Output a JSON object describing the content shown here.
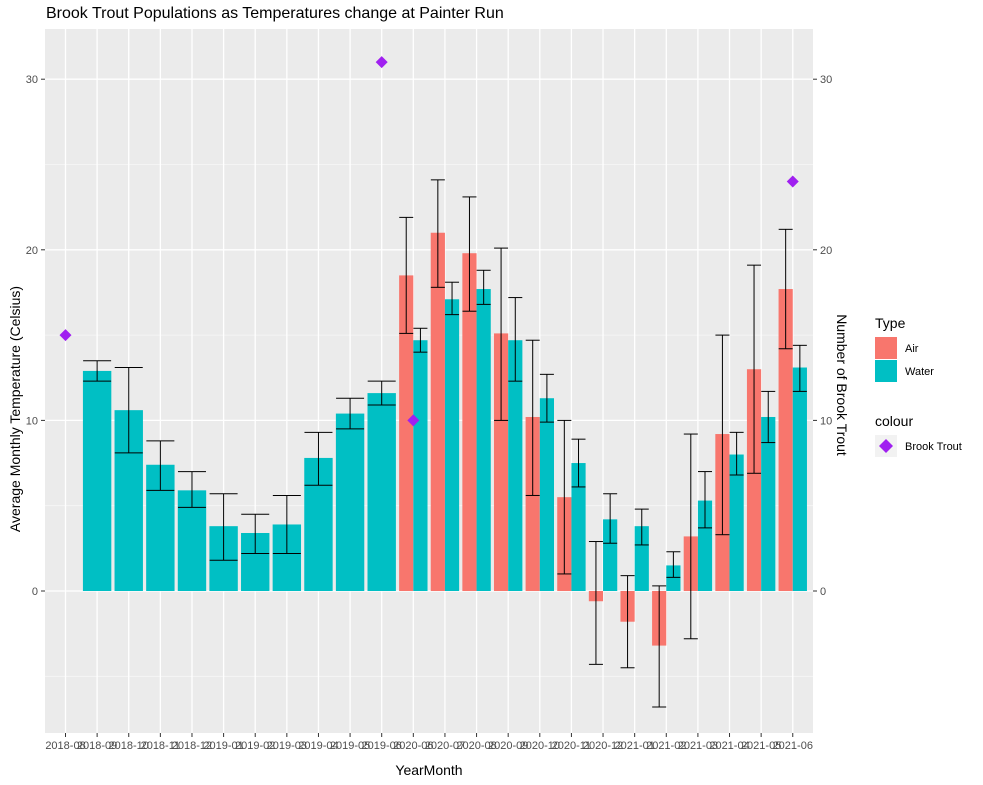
{
  "title": "Brook Trout Populations as Temperatures change at Painter Run",
  "chart_data": {
    "type": "bar",
    "title": "Brook Trout Populations as Temperatures change at Painter Run",
    "xlabel": "YearMonth",
    "ylabel": "Average Monthly Temperature (Celsius)",
    "y2label": "Number of Brook Trout",
    "ylim": [
      -8.4,
      33.1
    ],
    "y_ticks": [
      0,
      10,
      20,
      30
    ],
    "y2_ticks": [
      0,
      10,
      20,
      30
    ],
    "grid": true,
    "legend_position": "right",
    "categories": [
      "2018-08",
      "2018-09",
      "2018-10",
      "2018-11",
      "2018-12",
      "2019-01",
      "2019-02",
      "2019-03",
      "2019-04",
      "2019-05",
      "2019-06",
      "2020-06",
      "2020-07",
      "2020-08",
      "2020-09",
      "2020-10",
      "2020-11",
      "2020-12",
      "2021-01",
      "2021-02",
      "2021-03",
      "2021-04",
      "2021-05",
      "2021-06"
    ],
    "series": [
      {
        "name": "Air",
        "color": "#F8766D",
        "values": [
          null,
          null,
          null,
          null,
          null,
          null,
          null,
          null,
          null,
          null,
          null,
          18.5,
          21.0,
          19.8,
          15.1,
          10.2,
          5.5,
          -0.6,
          -1.8,
          -3.2,
          3.2,
          9.2,
          13.0,
          17.7
        ],
        "err_low": [
          null,
          null,
          null,
          null,
          null,
          null,
          null,
          null,
          null,
          null,
          null,
          15.1,
          17.8,
          16.4,
          10.0,
          5.6,
          1.0,
          -4.3,
          -4.5,
          -6.8,
          -2.8,
          3.3,
          6.9,
          14.2
        ],
        "err_high": [
          null,
          null,
          null,
          null,
          null,
          null,
          null,
          null,
          null,
          null,
          null,
          21.9,
          24.1,
          23.1,
          20.1,
          14.7,
          10.0,
          2.9,
          0.9,
          0.3,
          9.2,
          15.0,
          19.1,
          21.2
        ]
      },
      {
        "name": "Water",
        "color": "#00BFC4",
        "values": [
          null,
          12.9,
          10.6,
          7.4,
          5.9,
          3.8,
          3.4,
          3.9,
          7.8,
          10.4,
          11.6,
          14.7,
          17.1,
          17.7,
          14.7,
          11.3,
          7.5,
          4.2,
          3.8,
          1.5,
          5.3,
          8.0,
          10.2,
          13.1
        ],
        "err_low": [
          null,
          12.3,
          8.1,
          5.9,
          4.9,
          1.8,
          2.2,
          2.2,
          6.2,
          9.5,
          10.9,
          14.0,
          16.2,
          16.8,
          12.3,
          9.9,
          6.1,
          2.8,
          2.7,
          0.8,
          3.7,
          6.8,
          8.7,
          11.7
        ],
        "err_high": [
          null,
          13.5,
          13.1,
          8.8,
          7.0,
          5.7,
          4.5,
          5.6,
          9.3,
          11.3,
          12.3,
          15.4,
          18.1,
          18.8,
          17.2,
          12.7,
          8.9,
          5.7,
          4.8,
          2.3,
          7.0,
          9.3,
          11.7,
          14.4
        ]
      },
      {
        "name": "Brook Trout",
        "color": "#A020F0",
        "kind": "points",
        "values": [
          15,
          null,
          null,
          null,
          null,
          null,
          null,
          null,
          null,
          null,
          31,
          10,
          null,
          null,
          null,
          null,
          null,
          null,
          null,
          null,
          null,
          null,
          null,
          24
        ]
      }
    ]
  },
  "legend": {
    "type_title": "Type",
    "type_items": [
      {
        "label": "Air",
        "color": "#F8766D"
      },
      {
        "label": "Water",
        "color": "#00BFC4"
      }
    ],
    "colour_title": "colour",
    "colour_items": [
      {
        "label": "Brook Trout",
        "color": "#A020F0"
      }
    ]
  },
  "colors": {
    "panel": "#EBEBEB",
    "grid": "#FFFFFF",
    "air": "#F8766D",
    "water": "#00BFC4",
    "trout": "#A020F0"
  }
}
